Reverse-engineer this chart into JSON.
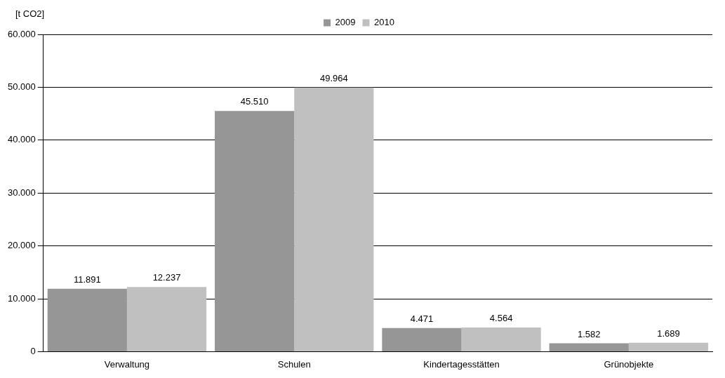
{
  "chart_data": {
    "type": "bar",
    "ylabel": "[t CO2]",
    "categories": [
      "Verwaltung",
      "Schulen",
      "Kindertagesstätten",
      "Grünobjekte"
    ],
    "series": [
      {
        "name": "2009",
        "color": "#969696",
        "values": [
          11891,
          45510,
          4471,
          1582
        ],
        "value_labels": [
          "11.891",
          "45.510",
          "4.471",
          "1.582"
        ]
      },
      {
        "name": "2010",
        "color": "#c0c0c0",
        "values": [
          12237,
          49964,
          4564,
          1689
        ],
        "value_labels": [
          "12.237",
          "49.964",
          "4.564",
          "1.689"
        ]
      }
    ],
    "ylim": [
      0,
      60000
    ],
    "yticks": [
      0,
      {
        "value": 10000,
        "label": "10.000"
      },
      {
        "value": 20000,
        "label": "20.000"
      },
      {
        "value": 30000,
        "label": "30.000"
      },
      {
        "value": 40000,
        "label": "40.000"
      },
      {
        "value": 50000,
        "label": "50.000"
      },
      {
        "value": 60000,
        "label": "60.000"
      }
    ],
    "grid": "y",
    "legend": "top"
  }
}
